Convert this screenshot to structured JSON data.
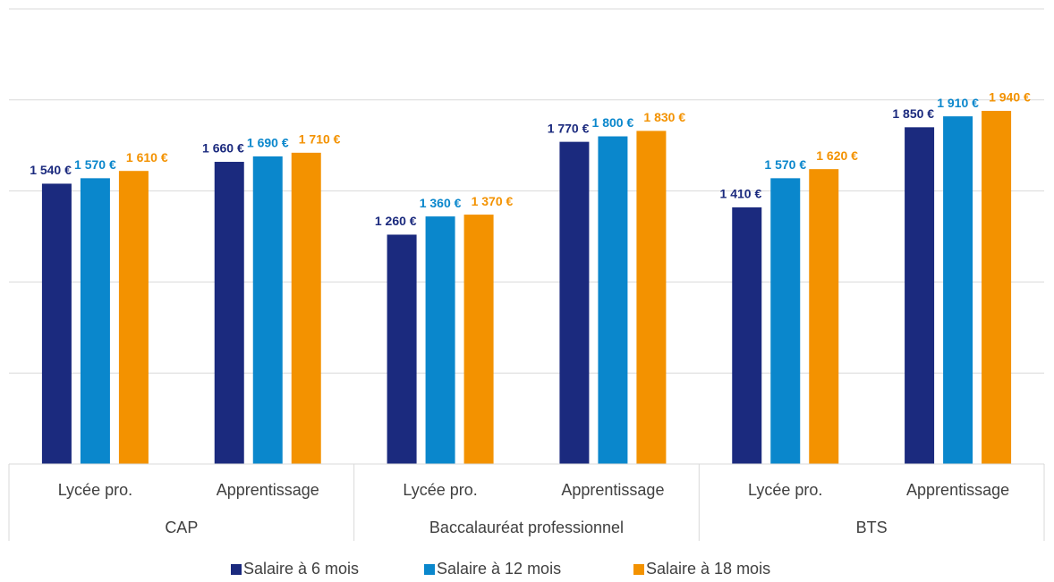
{
  "chart_data": {
    "type": "bar",
    "categories": [
      "Lycée pro.",
      "Apprentissage",
      "Lycée pro.",
      "Apprentissage",
      "Lycée pro.",
      "Apprentissage"
    ],
    "groups": [
      "CAP",
      "Baccalauréat professionnel",
      "BTS"
    ],
    "series": [
      {
        "name": "Salaire à 6 mois",
        "color": "#1b2a7e",
        "values": [
          1540,
          1660,
          1260,
          1770,
          1410,
          1850
        ],
        "value_labels": [
          "1 540 €",
          "1 660 €",
          "1 260 €",
          "1 770 €",
          "1 410 €",
          "1 850 €"
        ]
      },
      {
        "name": "Salaire à 12 mois",
        "color": "#0a87cc",
        "values": [
          1570,
          1690,
          1360,
          1800,
          1570,
          1910
        ],
        "value_labels": [
          "1 570 €",
          "1 690 €",
          "1 360 €",
          "1 800 €",
          "1 570 €",
          "1 910 €"
        ]
      },
      {
        "name": "Salaire à 18 mois",
        "color": "#f39200",
        "values": [
          1610,
          1710,
          1370,
          1830,
          1620,
          1940
        ],
        "value_labels": [
          "1 610 €",
          "1 710 €",
          "1 370 €",
          "1 830 €",
          "1 620 €",
          "1 940 €"
        ]
      }
    ],
    "ylim": [
      0,
      2500
    ],
    "yticks": [
      0,
      500,
      1000,
      1500,
      2000,
      2500
    ],
    "grid": true,
    "legend": "bottom"
  }
}
